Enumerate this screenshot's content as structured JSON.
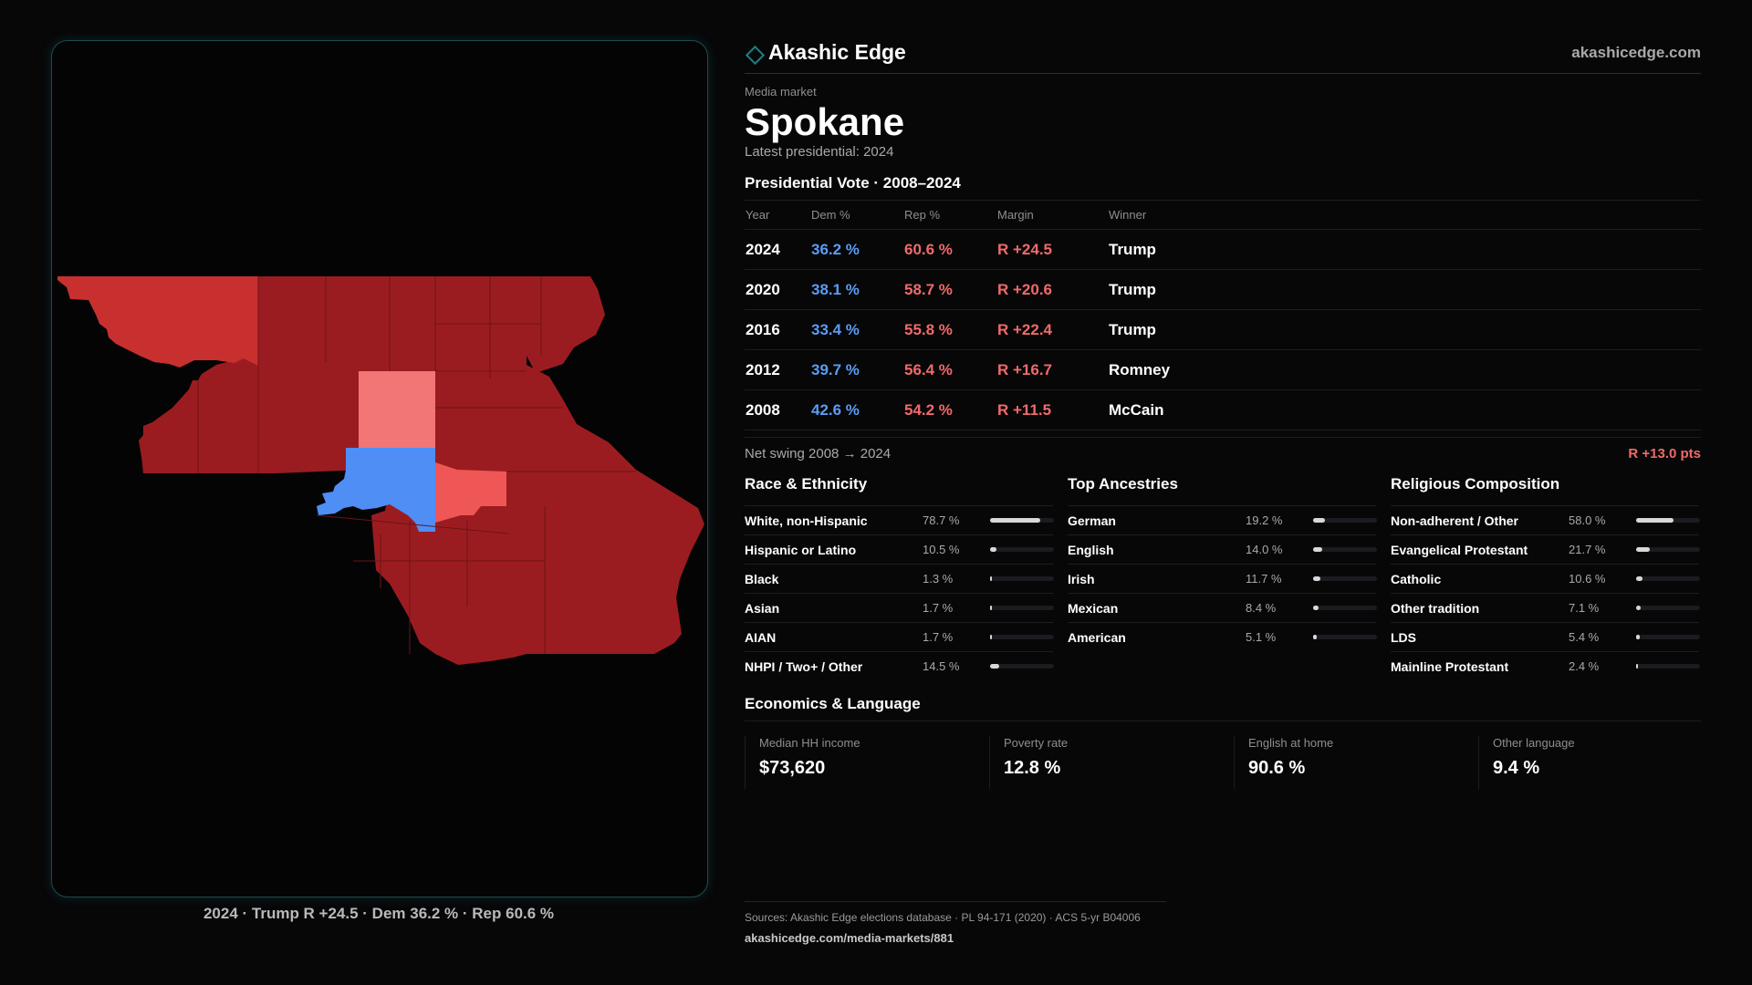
{
  "brand": {
    "name": "Akashic Edge",
    "url": "akashicedge.com",
    "logo_icon": "diamond-outline-icon"
  },
  "market": {
    "kicker": "Media market",
    "name": "Spokane",
    "latest": "Latest presidential: 2024"
  },
  "votes": {
    "title": "Presidential Vote · 2008–2024",
    "headers": {
      "year": "Year",
      "dem": "Dem %",
      "rep": "Rep %",
      "margin": "Margin",
      "winner": "Winner"
    },
    "rows": [
      {
        "year": "2024",
        "dem": "36.2 %",
        "rep": "60.6 %",
        "margin": "R +24.5",
        "winner": "Trump"
      },
      {
        "year": "2020",
        "dem": "38.1 %",
        "rep": "58.7 %",
        "margin": "R +20.6",
        "winner": "Trump"
      },
      {
        "year": "2016",
        "dem": "33.4 %",
        "rep": "55.8 %",
        "margin": "R +22.4",
        "winner": "Trump"
      },
      {
        "year": "2012",
        "dem": "39.7 %",
        "rep": "56.4 %",
        "margin": "R +16.7",
        "winner": "Romney"
      },
      {
        "year": "2008",
        "dem": "42.6 %",
        "rep": "54.2 %",
        "margin": "R +11.5",
        "winner": "McCain"
      }
    ],
    "swing_label": "Net swing 2008 → 2024",
    "swing_value": "R +13.0 pts"
  },
  "race": {
    "title": "Race & Ethnicity",
    "rows": [
      {
        "label": "White, non-Hispanic",
        "pct": "78.7 %",
        "share": 0.787
      },
      {
        "label": "Hispanic or Latino",
        "pct": "10.5 %",
        "share": 0.105
      },
      {
        "label": "Black",
        "pct": "1.3 %",
        "share": 0.013
      },
      {
        "label": "Asian",
        "pct": "1.7 %",
        "share": 0.017
      },
      {
        "label": "AIAN",
        "pct": "1.7 %",
        "share": 0.017
      },
      {
        "label": "NHPI / Two+ / Other",
        "pct": "14.5 %",
        "share": 0.145
      }
    ]
  },
  "ancestry": {
    "title": "Top Ancestries",
    "rows": [
      {
        "label": "German",
        "pct": "19.2 %",
        "share": 0.192
      },
      {
        "label": "English",
        "pct": "14.0 %",
        "share": 0.14
      },
      {
        "label": "Irish",
        "pct": "11.7 %",
        "share": 0.117
      },
      {
        "label": "Mexican",
        "pct": "8.4 %",
        "share": 0.084
      },
      {
        "label": "American",
        "pct": "5.1 %",
        "share": 0.051
      }
    ]
  },
  "religion": {
    "title": "Religious Composition",
    "rows": [
      {
        "label": "Non-adherent / Other",
        "pct": "58.0 %",
        "share": 0.58
      },
      {
        "label": "Evangelical Protestant",
        "pct": "21.7 %",
        "share": 0.217
      },
      {
        "label": "Catholic",
        "pct": "10.6 %",
        "share": 0.106
      },
      {
        "label": "Other tradition",
        "pct": "7.1 %",
        "share": 0.071
      },
      {
        "label": "LDS",
        "pct": "5.4 %",
        "share": 0.054
      },
      {
        "label": "Mainline Protestant",
        "pct": "2.4 %",
        "share": 0.024
      }
    ]
  },
  "economics": {
    "title": "Economics & Language",
    "items": [
      {
        "label": "Median HH income",
        "value": "$73,620"
      },
      {
        "label": "Poverty rate",
        "value": "12.8 %"
      },
      {
        "label": "English at home",
        "value": "90.6 %"
      },
      {
        "label": "Other language",
        "value": "9.4 %"
      }
    ]
  },
  "map": {
    "caption": "2024 · Trump R +24.5 · Dem 36.2 % · Rep 60.6 %",
    "colors": {
      "strong_rep": "#9b1c20",
      "lean_rep": "#c8302f",
      "light_rep": "#f27676",
      "mid_rep": "#ef5656",
      "dem": "#4f8ef5"
    }
  },
  "sources": {
    "text": "Sources: Akashic Edge elections database · PL 94-171 (2020) · ACS 5-yr B04006",
    "link": "akashicedge.com/media-markets/881"
  }
}
